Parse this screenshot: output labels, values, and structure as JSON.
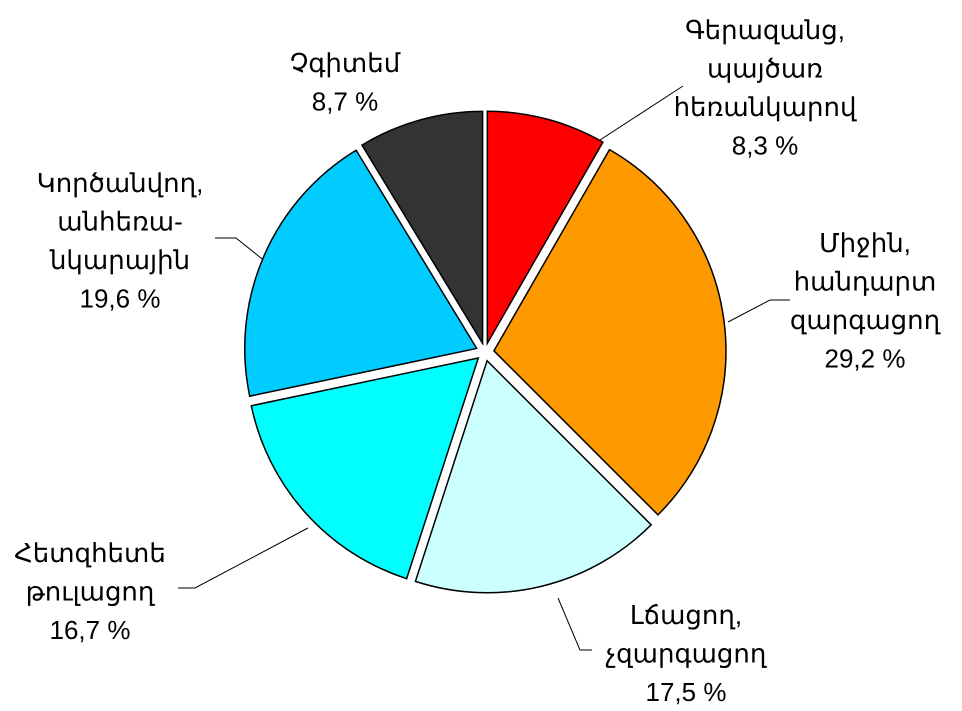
{
  "chart_data": {
    "type": "pie",
    "categories": [
      [
        "Գերազանց,",
        "պայծառ",
        "հեռանկարով"
      ],
      [
        "Միջին,",
        "հանդարտ",
        "զարգացող"
      ],
      [
        "Լճացող,",
        "չզարգացող"
      ],
      [
        "Հետզհետե",
        "թուլացող"
      ],
      [
        "Կործանվող,",
        "անհեռա-",
        "նկարային"
      ],
      [
        "Չգիտեմ"
      ]
    ],
    "values": [
      8.3,
      29.2,
      17.5,
      16.7,
      19.6,
      8.7
    ],
    "value_labels": [
      "8,3 %",
      "29,2 %",
      "17,5 %",
      "16,7 %",
      "19,6 %",
      "8,7 %"
    ],
    "colors": [
      "#ff0000",
      "#ff9900",
      "#ccffff",
      "#00ffff",
      "#00ccff",
      "#333333"
    ]
  }
}
